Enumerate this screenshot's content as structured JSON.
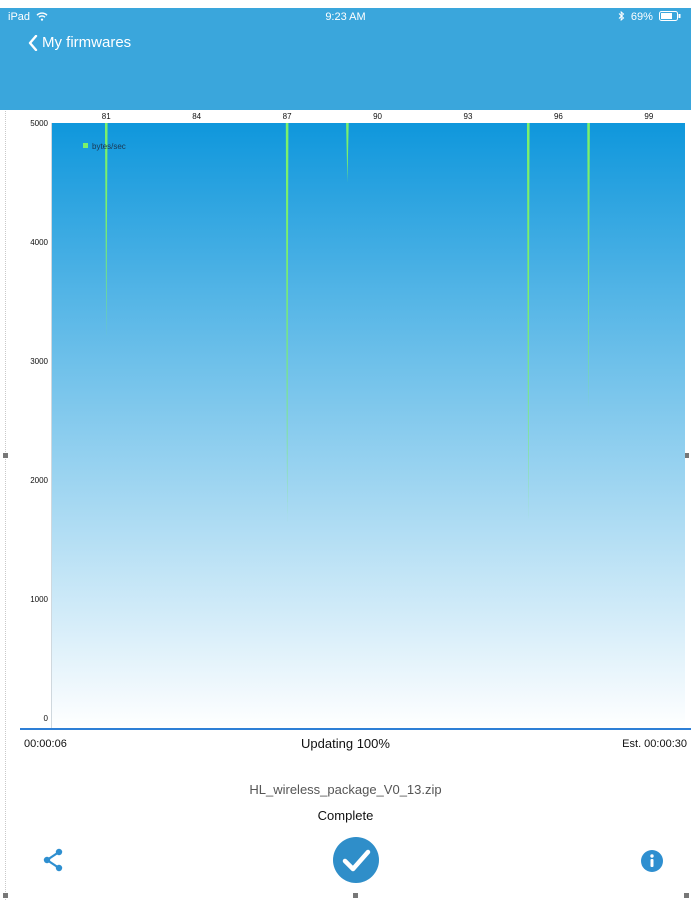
{
  "status_bar": {
    "device": "iPad",
    "time": "9:23 AM",
    "battery": "69%"
  },
  "nav": {
    "back_label": "My firmwares"
  },
  "chart_data": {
    "type": "line",
    "x_ticks": [
      "81",
      "84",
      "87",
      "90",
      "93",
      "96",
      "99"
    ],
    "y_ticks": [
      "5000",
      "4000",
      "3000",
      "2000",
      "1000",
      "0"
    ],
    "ylim": [
      0,
      5000
    ],
    "xlim": [
      79.2,
      100.2
    ],
    "legend": "bytes/sec",
    "legend_position": "top-left",
    "series": [
      {
        "name": "bytes/sec",
        "color": "#7bf16b",
        "points": [
          {
            "x": 81,
            "y": 3200
          },
          {
            "x": 87,
            "y": 1650
          },
          {
            "x": 89,
            "y": 4500
          },
          {
            "x": 95,
            "y": 1650
          },
          {
            "x": 97,
            "y": 2600
          }
        ]
      }
    ],
    "background_top": "#0f97dc",
    "background_bottom": "#ffffff"
  },
  "progress": {
    "elapsed": "00:00:06",
    "status": "Updating 100%",
    "estimate": "Est.  00:00:30"
  },
  "file": {
    "name": "HL_wireless_package_V0_13.zip",
    "state": "Complete"
  },
  "colors": {
    "accent": "#3aa6dc",
    "check": "#2f8ec9"
  }
}
